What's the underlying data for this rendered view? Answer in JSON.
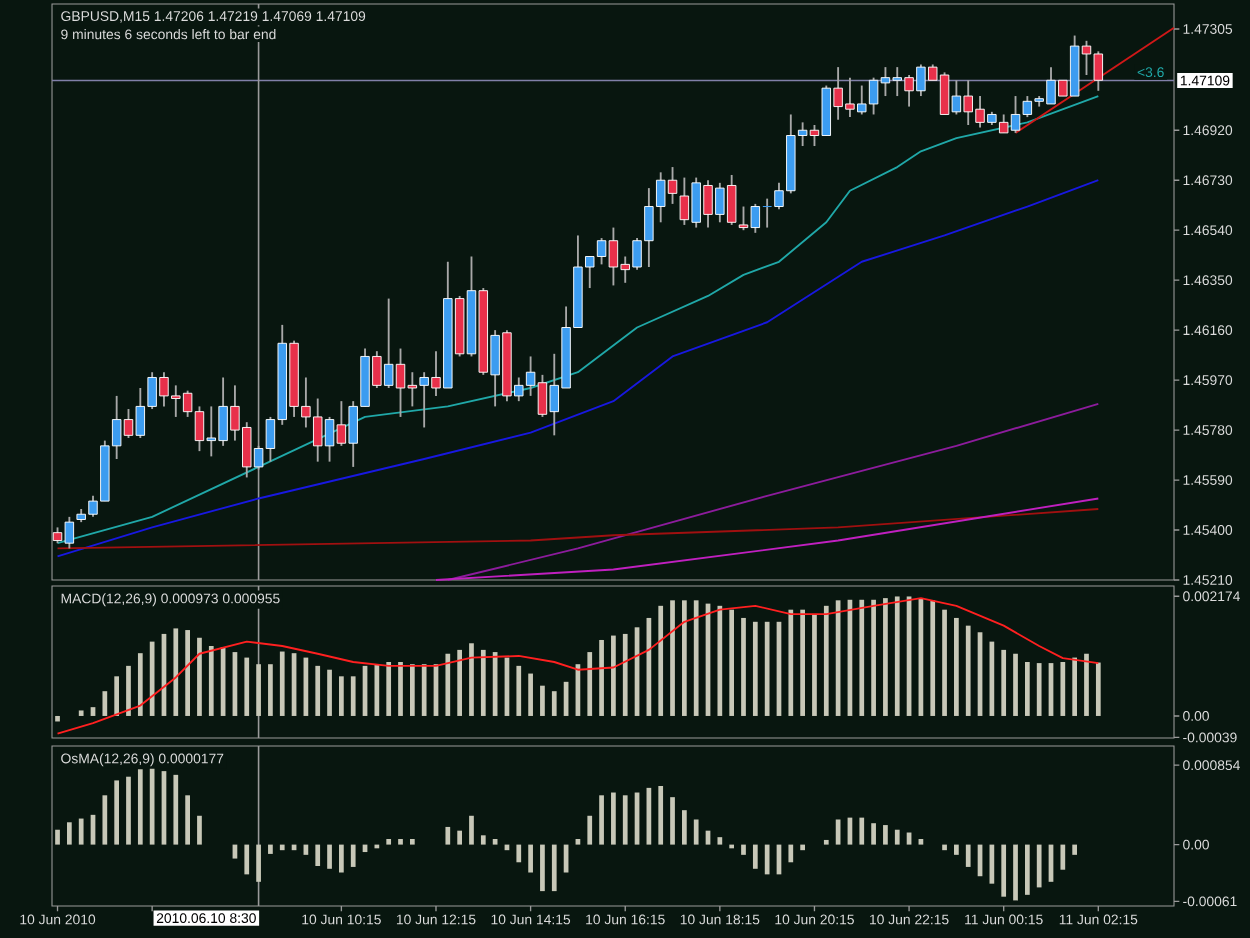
{
  "chart_data": [
    {
      "type": "candlestick",
      "title": "GBPUSD,M15 1.47206 1.47219 1.47069 1.47109",
      "subtitle": "9 minutes 6 seconds left to bar end",
      "x": [
        "2010-06-10T04:15",
        "2010-06-10T04:30",
        "2010-06-10T04:45",
        "2010-06-10T05:00",
        "2010-06-10T05:15",
        "2010-06-10T05:30",
        "2010-06-10T05:45",
        "2010-06-10T06:00",
        "2010-06-10T06:15",
        "2010-06-10T06:30",
        "2010-06-10T06:45",
        "2010-06-10T07:00",
        "2010-06-10T07:15",
        "2010-06-10T07:30",
        "2010-06-10T07:45",
        "2010-06-10T08:00",
        "2010-06-10T08:15",
        "2010-06-10T08:30",
        "2010-06-10T08:45",
        "2010-06-10T09:00",
        "2010-06-10T09:15",
        "2010-06-10T09:30",
        "2010-06-10T09:45",
        "2010-06-10T10:00",
        "2010-06-10T10:15",
        "2010-06-10T10:30",
        "2010-06-10T10:45",
        "2010-06-10T11:00",
        "2010-06-10T11:15",
        "2010-06-10T11:30",
        "2010-06-10T11:45",
        "2010-06-10T12:00",
        "2010-06-10T12:15",
        "2010-06-10T12:30",
        "2010-06-10T12:45",
        "2010-06-10T13:00",
        "2010-06-10T13:15",
        "2010-06-10T13:30",
        "2010-06-10T13:45",
        "2010-06-10T14:00",
        "2010-06-10T14:15",
        "2010-06-10T14:30",
        "2010-06-10T14:45",
        "2010-06-10T15:00",
        "2010-06-10T15:15",
        "2010-06-10T15:30",
        "2010-06-10T15:45",
        "2010-06-10T16:00",
        "2010-06-10T16:15",
        "2010-06-10T16:30",
        "2010-06-10T16:45",
        "2010-06-10T17:00",
        "2010-06-10T17:15",
        "2010-06-10T17:30",
        "2010-06-10T17:45",
        "2010-06-10T18:00",
        "2010-06-10T18:15",
        "2010-06-10T18:30",
        "2010-06-10T18:45",
        "2010-06-10T19:00",
        "2010-06-10T19:15",
        "2010-06-10T19:30",
        "2010-06-10T19:45",
        "2010-06-10T20:00",
        "2010-06-10T20:15",
        "2010-06-10T20:30",
        "2010-06-10T20:45",
        "2010-06-10T21:00",
        "2010-06-10T21:15",
        "2010-06-10T21:30",
        "2010-06-10T21:45",
        "2010-06-10T22:00",
        "2010-06-10T22:15",
        "2010-06-10T22:30",
        "2010-06-10T22:45",
        "2010-06-10T23:00",
        "2010-06-10T23:15",
        "2010-06-10T23:30",
        "2010-06-10T23:45",
        "2010-06-11T00:00",
        "2010-06-11T00:15",
        "2010-06-11T00:30",
        "2010-06-11T00:45",
        "2010-06-11T01:00",
        "2010-06-11T01:15",
        "2010-06-11T01:30",
        "2010-06-11T01:45",
        "2010-06-11T02:00",
        "2010-06-11T02:15"
      ],
      "ohlc": [
        [
          1.4539,
          1.4541,
          1.4535,
          1.4536
        ],
        [
          1.4535,
          1.4545,
          1.4533,
          1.4543
        ],
        [
          1.4544,
          1.4548,
          1.4543,
          1.4546
        ],
        [
          1.4546,
          1.4553,
          1.4545,
          1.4551
        ],
        [
          1.4551,
          1.4574,
          1.4551,
          1.4572
        ],
        [
          1.4572,
          1.4591,
          1.4567,
          1.4582
        ],
        [
          1.4582,
          1.4586,
          1.4575,
          1.4576
        ],
        [
          1.4576,
          1.4594,
          1.4575,
          1.4587
        ],
        [
          1.4587,
          1.46,
          1.4586,
          1.4598
        ],
        [
          1.4598,
          1.46,
          1.4587,
          1.4591
        ],
        [
          1.4591,
          1.4595,
          1.4583,
          1.459
        ],
        [
          1.4592,
          1.4593,
          1.4583,
          1.4585
        ],
        [
          1.4585,
          1.4587,
          1.457,
          1.4574
        ],
        [
          1.4574,
          1.4587,
          1.4568,
          1.4575
        ],
        [
          1.4574,
          1.4598,
          1.4572,
          1.4587
        ],
        [
          1.4587,
          1.4595,
          1.4574,
          1.4578
        ],
        [
          1.4579,
          1.4581,
          1.456,
          1.4564
        ],
        [
          1.4564,
          1.4572,
          1.4563,
          1.4571
        ],
        [
          1.4571,
          1.4583,
          1.4566,
          1.4582
        ],
        [
          1.4582,
          1.4618,
          1.458,
          1.4611
        ],
        [
          1.4611,
          1.4612,
          1.4583,
          1.4587
        ],
        [
          1.4587,
          1.4598,
          1.4579,
          1.4583
        ],
        [
          1.4583,
          1.459,
          1.4566,
          1.4572
        ],
        [
          1.4572,
          1.4583,
          1.4566,
          1.4582
        ],
        [
          1.458,
          1.4589,
          1.4572,
          1.4573
        ],
        [
          1.4573,
          1.4589,
          1.4564,
          1.4587
        ],
        [
          1.4587,
          1.4609,
          1.4587,
          1.4606
        ],
        [
          1.4606,
          1.4608,
          1.4594,
          1.4595
        ],
        [
          1.4595,
          1.4628,
          1.4594,
          1.4603
        ],
        [
          1.4603,
          1.4609,
          1.4583,
          1.4594
        ],
        [
          1.4595,
          1.46,
          1.4587,
          1.4594
        ],
        [
          1.4595,
          1.46,
          1.4579,
          1.4598
        ],
        [
          1.4598,
          1.4608,
          1.4591,
          1.4594
        ],
        [
          1.4594,
          1.4642,
          1.4594,
          1.4628
        ],
        [
          1.4628,
          1.4629,
          1.4606,
          1.4607
        ],
        [
          1.4607,
          1.4644,
          1.4606,
          1.4631
        ],
        [
          1.4631,
          1.4632,
          1.4599,
          1.46
        ],
        [
          1.4599,
          1.4616,
          1.4587,
          1.4614
        ],
        [
          1.4615,
          1.4616,
          1.4589,
          1.4591
        ],
        [
          1.4591,
          1.4598,
          1.4589,
          1.4595
        ],
        [
          1.4595,
          1.4606,
          1.4591,
          1.46
        ],
        [
          1.4596,
          1.4599,
          1.4583,
          1.4584
        ],
        [
          1.4585,
          1.4607,
          1.4576,
          1.4595
        ],
        [
          1.4594,
          1.4625,
          1.4594,
          1.4617
        ],
        [
          1.4617,
          1.4652,
          1.4617,
          1.464
        ],
        [
          1.464,
          1.4644,
          1.4632,
          1.4644
        ],
        [
          1.4644,
          1.4651,
          1.4641,
          1.465
        ],
        [
          1.465,
          1.4655,
          1.4633,
          1.464
        ],
        [
          1.4641,
          1.4644,
          1.4634,
          1.4639
        ],
        [
          1.464,
          1.4651,
          1.4639,
          1.465
        ],
        [
          1.465,
          1.467,
          1.464,
          1.4663
        ],
        [
          1.4663,
          1.4676,
          1.4657,
          1.4673
        ],
        [
          1.4673,
          1.4678,
          1.4664,
          1.4668
        ],
        [
          1.4667,
          1.4674,
          1.4656,
          1.4658
        ],
        [
          1.4657,
          1.4674,
          1.4655,
          1.4672
        ],
        [
          1.4671,
          1.4673,
          1.4655,
          1.466
        ],
        [
          1.466,
          1.4672,
          1.4657,
          1.467
        ],
        [
          1.4671,
          1.4675,
          1.4656,
          1.4657
        ],
        [
          1.4656,
          1.4663,
          1.4654,
          1.4655
        ],
        [
          1.4655,
          1.4664,
          1.4653,
          1.4663
        ],
        [
          1.4663,
          1.4666,
          1.4655,
          1.4663
        ],
        [
          1.4663,
          1.4672,
          1.4662,
          1.4669
        ],
        [
          1.4669,
          1.4698,
          1.4668,
          1.469
        ],
        [
          1.469,
          1.4695,
          1.4686,
          1.4692
        ],
        [
          1.4692,
          1.4694,
          1.4686,
          1.469
        ],
        [
          1.469,
          1.4709,
          1.469,
          1.4708
        ],
        [
          1.4708,
          1.4716,
          1.4696,
          1.4701
        ],
        [
          1.4702,
          1.4712,
          1.4697,
          1.47
        ],
        [
          1.4699,
          1.4709,
          1.4698,
          1.4702
        ],
        [
          1.4702,
          1.4712,
          1.4698,
          1.4711
        ],
        [
          1.471,
          1.4716,
          1.4705,
          1.4712
        ],
        [
          1.4711,
          1.4716,
          1.4705,
          1.4712
        ],
        [
          1.4712,
          1.4713,
          1.4701,
          1.4707
        ],
        [
          1.4707,
          1.4717,
          1.4705,
          1.4716
        ],
        [
          1.4716,
          1.4717,
          1.4711,
          1.4711
        ],
        [
          1.4713,
          1.4714,
          1.4698,
          1.4698
        ],
        [
          1.4699,
          1.4711,
          1.4698,
          1.4705
        ],
        [
          1.4705,
          1.4711,
          1.4694,
          1.4699
        ],
        [
          1.47,
          1.4705,
          1.4693,
          1.4695
        ],
        [
          1.4695,
          1.4699,
          1.4694,
          1.4698
        ],
        [
          1.4695,
          1.4698,
          1.4691,
          1.4691
        ],
        [
          1.4692,
          1.4705,
          1.4691,
          1.4698
        ],
        [
          1.4698,
          1.4705,
          1.4697,
          1.4703
        ],
        [
          1.4703,
          1.4705,
          1.4701,
          1.4704
        ],
        [
          1.4702,
          1.4716,
          1.4702,
          1.4711
        ],
        [
          1.4711,
          1.4711,
          1.4705,
          1.4705
        ],
        [
          1.4705,
          1.4728,
          1.4705,
          1.4724
        ],
        [
          1.4724,
          1.4726,
          1.4713,
          1.4721
        ],
        [
          1.4721,
          1.4722,
          1.4707,
          1.4711
        ]
      ],
      "colors": [
        "#e8304a",
        "#3c9cf0",
        "#3c9cf0",
        "#3c9cf0",
        "#3c9cf0",
        "#3c9cf0",
        "#e8304a",
        "#3c9cf0",
        "#3c9cf0",
        "#e8304a",
        "#e8304a",
        "#e8304a",
        "#e8304a",
        "#3c9cf0",
        "#3c9cf0",
        "#e8304a",
        "#e8304a",
        "#3c9cf0",
        "#3c9cf0",
        "#3c9cf0",
        "#e8304a",
        "#e8304a",
        "#e8304a",
        "#3c9cf0",
        "#e8304a",
        "#3c9cf0",
        "#3c9cf0",
        "#e8304a",
        "#3c9cf0",
        "#e8304a",
        "#e8304a",
        "#3c9cf0",
        "#e8304a",
        "#3c9cf0",
        "#e8304a",
        "#3c9cf0",
        "#e8304a",
        "#3c9cf0",
        "#e8304a",
        "#3c9cf0",
        "#3c9cf0",
        "#e8304a",
        "#3c9cf0",
        "#3c9cf0",
        "#3c9cf0",
        "#3c9cf0",
        "#3c9cf0",
        "#e8304a",
        "#e8304a",
        "#3c9cf0",
        "#3c9cf0",
        "#3c9cf0",
        "#e8304a",
        "#e8304a",
        "#3c9cf0",
        "#e8304a",
        "#3c9cf0",
        "#e8304a",
        "#e8304a",
        "#3c9cf0",
        "#3c9cf0",
        "#3c9cf0",
        "#3c9cf0",
        "#3c9cf0",
        "#e8304a",
        "#3c9cf0",
        "#e8304a",
        "#e8304a",
        "#3c9cf0",
        "#3c9cf0",
        "#3c9cf0",
        "#3c9cf0",
        "#e8304a",
        "#3c9cf0",
        "#e8304a",
        "#e8304a",
        "#3c9cf0",
        "#e8304a",
        "#e8304a",
        "#3c9cf0",
        "#e8304a",
        "#3c9cf0",
        "#3c9cf0",
        "#3c9cf0",
        "#3c9cf0",
        "#e8304a",
        "#3c9cf0",
        "#e8304a",
        "#e8304a"
      ],
      "series": [
        {
          "type": "line",
          "color": "#20a8a8",
          "x": [
            "2010-06-10T04:15",
            "2010-06-10T06:15",
            "2010-06-10T08:30",
            "2010-06-10T10:45",
            "2010-06-10T12:30",
            "2010-06-10T14:15",
            "2010-06-10T15:15",
            "2010-06-10T16:30",
            "2010-06-10T18:00",
            "2010-06-10T18:45",
            "2010-06-10T19:30",
            "2010-06-10T20:30",
            "2010-06-10T21:00",
            "2010-06-10T22:00",
            "2010-06-10T22:30",
            "2010-06-10T23:15",
            "2010-06-11T00:45",
            "2010-06-11T02:15"
          ],
          "values": [
            1.4535,
            1.4545,
            1.4564,
            1.4583,
            1.4587,
            1.4594,
            1.46,
            1.4617,
            1.4629,
            1.4637,
            1.4642,
            1.4657,
            1.4669,
            1.4678,
            1.4684,
            1.4689,
            1.4695,
            1.4705
          ]
        },
        {
          "type": "line",
          "color": "#1818e0",
          "x": [
            "2010-06-10T04:15",
            "2010-06-10T06:15",
            "2010-06-10T08:30",
            "2010-06-10T12:00",
            "2010-06-10T14:15",
            "2010-06-10T16:00",
            "2010-06-10T17:15",
            "2010-06-10T19:15",
            "2010-06-10T21:15",
            "2010-06-10T23:00",
            "2010-06-11T00:45",
            "2010-06-11T02:15"
          ],
          "values": [
            1.453,
            1.4541,
            1.4552,
            1.4567,
            1.4577,
            1.4589,
            1.4606,
            1.4619,
            1.4642,
            1.4652,
            1.4663,
            1.4673
          ]
        },
        {
          "type": "line",
          "color": "#8c1c9c",
          "x": [
            "2010-06-10T12:30",
            "2010-06-10T15:15",
            "2010-06-10T19:15",
            "2010-06-10T23:15",
            "2010-06-11T02:15"
          ],
          "values": [
            1.4521,
            1.4533,
            1.4553,
            1.4572,
            1.4588
          ]
        },
        {
          "type": "line",
          "color": "#a01010",
          "x": [
            "2010-06-10T04:15",
            "2010-06-10T14:15",
            "2010-06-10T16:00",
            "2010-06-10T20:45",
            "2010-06-11T02:15"
          ],
          "values": [
            1.4533,
            1.4536,
            1.4538,
            1.4541,
            1.4548
          ]
        },
        {
          "type": "line",
          "color": "#c020c0",
          "x": [
            "2010-06-10T12:15",
            "2010-06-10T16:00",
            "2010-06-10T20:45",
            "2010-06-11T02:15"
          ],
          "values": [
            1.4521,
            1.4525,
            1.4536,
            1.4552
          ]
        },
        {
          "type": "line",
          "color": "#d01818",
          "x": [
            "2010-06-11T00:30",
            "2010-06-11T03:51"
          ],
          "values": [
            1.4691,
            1.4731
          ]
        }
      ],
      "ref_lines": [
        {
          "axis": "y",
          "value": 1.47109,
          "label": "1.47109",
          "color": "#8080a8"
        },
        {
          "axis": "x",
          "value": "2010-06-10T08:30",
          "color": "#9a9a9a"
        }
      ],
      "annotations": [
        {
          "text": "<3.6",
          "x": "2010-06-11T03:00",
          "y": 1.4711
        }
      ],
      "xlim": [
        "2010-06-10T04:08",
        "2010-06-11T03:51"
      ],
      "ylim": [
        1.4521,
        1.474
      ],
      "yticks": [
        1.47305,
        {
          "value": 1.4692,
          "label": "1.46920"
        },
        {
          "value": 1.4673,
          "label": "1.46730"
        },
        {
          "value": 1.4654,
          "label": "1.46540"
        },
        {
          "value": 1.4635,
          "label": "1.46350"
        },
        {
          "value": 1.4616,
          "label": "1.46160"
        },
        {
          "value": 1.4597,
          "label": "1.45970"
        },
        {
          "value": 1.4578,
          "label": "1.45780"
        },
        {
          "value": 1.4559,
          "label": "1.45590"
        },
        {
          "value": 1.454,
          "label": "1.45400"
        },
        {
          "value": 1.4521,
          "label": "1.45210"
        }
      ],
      "tick_labels": "y"
    },
    {
      "type": "bar",
      "title": "MACD(12,26,9) 0.000973 0.000955",
      "x": [
        "2010-06-10T04:15",
        "2010-06-10T04:30",
        "2010-06-10T04:45",
        "2010-06-10T05:00",
        "2010-06-10T05:15",
        "2010-06-10T05:30",
        "2010-06-10T05:45",
        "2010-06-10T06:00",
        "2010-06-10T06:15",
        "2010-06-10T06:30",
        "2010-06-10T06:45",
        "2010-06-10T07:00",
        "2010-06-10T07:15",
        "2010-06-10T07:30",
        "2010-06-10T07:45",
        "2010-06-10T08:00",
        "2010-06-10T08:15",
        "2010-06-10T08:30",
        "2010-06-10T08:45",
        "2010-06-10T09:00",
        "2010-06-10T09:15",
        "2010-06-10T09:30",
        "2010-06-10T09:45",
        "2010-06-10T10:00",
        "2010-06-10T10:15",
        "2010-06-10T10:30",
        "2010-06-10T10:45",
        "2010-06-10T11:00",
        "2010-06-10T11:15",
        "2010-06-10T11:30",
        "2010-06-10T11:45",
        "2010-06-10T12:00",
        "2010-06-10T12:15",
        "2010-06-10T12:30",
        "2010-06-10T12:45",
        "2010-06-10T13:00",
        "2010-06-10T13:15",
        "2010-06-10T13:30",
        "2010-06-10T13:45",
        "2010-06-10T14:00",
        "2010-06-10T14:15",
        "2010-06-10T14:30",
        "2010-06-10T14:45",
        "2010-06-10T15:00",
        "2010-06-10T15:15",
        "2010-06-10T15:30",
        "2010-06-10T15:45",
        "2010-06-10T16:00",
        "2010-06-10T16:15",
        "2010-06-10T16:30",
        "2010-06-10T16:45",
        "2010-06-10T17:00",
        "2010-06-10T17:15",
        "2010-06-10T17:30",
        "2010-06-10T17:45",
        "2010-06-10T18:00",
        "2010-06-10T18:15",
        "2010-06-10T18:30",
        "2010-06-10T18:45",
        "2010-06-10T19:00",
        "2010-06-10T19:15",
        "2010-06-10T19:30",
        "2010-06-10T19:45",
        "2010-06-10T20:00",
        "2010-06-10T20:15",
        "2010-06-10T20:30",
        "2010-06-10T20:45",
        "2010-06-10T21:00",
        "2010-06-10T21:15",
        "2010-06-10T21:30",
        "2010-06-10T21:45",
        "2010-06-10T22:00",
        "2010-06-10T22:15",
        "2010-06-10T22:30",
        "2010-06-10T22:45",
        "2010-06-10T23:00",
        "2010-06-10T23:15",
        "2010-06-10T23:30",
        "2010-06-10T23:45",
        "2010-06-11T00:00",
        "2010-06-11T00:15",
        "2010-06-11T00:30",
        "2010-06-11T00:45",
        "2010-06-11T01:00",
        "2010-06-11T01:15",
        "2010-06-11T01:30",
        "2010-06-11T01:45",
        "2010-06-11T02:00",
        "2010-06-11T02:15"
      ],
      "series": [
        {
          "type": "bar",
          "color": "#c8c8b8",
          "values": [
            -0.0001,
            0,
            0.0001,
            0.00016,
            0.00045,
            0.00072,
            0.00091,
            0.00114,
            0.00135,
            0.00149,
            0.00159,
            0.00156,
            0.00142,
            0.00127,
            0.00125,
            0.00116,
            0.00106,
            0.00094,
            0.00094,
            0.00117,
            0.00114,
            0.00106,
            0.00091,
            0.00084,
            0.00072,
            0.00072,
            0.00091,
            0.00094,
            0.00098,
            0.00098,
            0.00094,
            0.00094,
            0.00094,
            0.00113,
            0.0012,
            0.00132,
            0.0012,
            0.00116,
            0.00106,
            0.00091,
            0.00077,
            0.00055,
            0.00045,
            0.00062,
            0.00094,
            0.00116,
            0.00138,
            0.00146,
            0.00149,
            0.00161,
            0.00178,
            0.002,
            0.0021,
            0.0021,
            0.0021,
            0.00204,
            0.002,
            0.00193,
            0.00178,
            0.00171,
            0.00171,
            0.00171,
            0.00193,
            0.00193,
            0.00185,
            0.002,
            0.0021,
            0.00211,
            0.00211,
            0.00211,
            0.00214,
            0.00217,
            0.00217,
            0.00214,
            0.0021,
            0.00193,
            0.00178,
            0.00164,
            0.00152,
            0.00135,
            0.0012,
            0.00113,
            0.00098,
            0.00096,
            0.00096,
            0.00098,
            0.00106,
            0.00113,
            0.00097
          ]
        },
        {
          "type": "line",
          "color": "#ff2020",
          "x": [
            "2010-06-10T04:15",
            "2010-06-10T05:00",
            "2010-06-10T06:00",
            "2010-06-10T06:45",
            "2010-06-10T07:15",
            "2010-06-10T08:15",
            "2010-06-10T09:00",
            "2010-06-10T09:45",
            "2010-06-10T10:30",
            "2010-06-10T11:15",
            "2010-06-10T12:15",
            "2010-06-10T13:00",
            "2010-06-10T14:00",
            "2010-06-10T14:45",
            "2010-06-10T15:15",
            "2010-06-10T16:00",
            "2010-06-10T16:45",
            "2010-06-10T17:30",
            "2010-06-10T18:15",
            "2010-06-10T19:00",
            "2010-06-10T19:45",
            "2010-06-10T20:30",
            "2010-06-10T21:30",
            "2010-06-10T22:30",
            "2010-06-10T23:15",
            "2010-06-11T00:15",
            "2010-06-11T01:00",
            "2010-06-11T01:30",
            "2010-06-11T02:15"
          ],
          "values": [
            -0.00032,
            -0.00013,
            0.00019,
            0.0007,
            0.00113,
            0.00135,
            0.00127,
            0.00113,
            0.00098,
            0.00091,
            0.00091,
            0.00106,
            0.00109,
            0.00098,
            0.00084,
            0.00088,
            0.0012,
            0.00171,
            0.00193,
            0.002,
            0.00185,
            0.00185,
            0.002,
            0.00214,
            0.002,
            0.00164,
            0.00127,
            0.00105,
            0.00096
          ]
        }
      ],
      "ref_lines": [
        {
          "axis": "x",
          "value": "2010-06-10T08:30",
          "color": "#9a9a9a"
        }
      ],
      "xlim": [
        "2010-06-10T04:08",
        "2010-06-11T03:51"
      ],
      "ylim": [
        -0.0004,
        0.00236
      ],
      "yticks": [
        0.002174,
        {
          "value": 0,
          "label": "0.00"
        },
        -0.00039
      ],
      "tick_labels": "y"
    },
    {
      "type": "bar",
      "title": "OsMA(12,26,9) 0.0000177",
      "color": "#c8c8b8",
      "x": [
        "2010-06-10T04:15",
        "2010-06-10T04:30",
        "2010-06-10T04:45",
        "2010-06-10T05:00",
        "2010-06-10T05:15",
        "2010-06-10T05:30",
        "2010-06-10T05:45",
        "2010-06-10T06:00",
        "2010-06-10T06:15",
        "2010-06-10T06:30",
        "2010-06-10T06:45",
        "2010-06-10T07:00",
        "2010-06-10T07:15",
        "2010-06-10T07:30",
        "2010-06-10T07:45",
        "2010-06-10T08:00",
        "2010-06-10T08:15",
        "2010-06-10T08:30",
        "2010-06-10T08:45",
        "2010-06-10T09:00",
        "2010-06-10T09:15",
        "2010-06-10T09:30",
        "2010-06-10T09:45",
        "2010-06-10T10:00",
        "2010-06-10T10:15",
        "2010-06-10T10:30",
        "2010-06-10T10:45",
        "2010-06-10T11:00",
        "2010-06-10T11:15",
        "2010-06-10T11:30",
        "2010-06-10T11:45",
        "2010-06-10T12:00",
        "2010-06-10T12:15",
        "2010-06-10T12:30",
        "2010-06-10T12:45",
        "2010-06-10T13:00",
        "2010-06-10T13:15",
        "2010-06-10T13:30",
        "2010-06-10T13:45",
        "2010-06-10T14:00",
        "2010-06-10T14:15",
        "2010-06-10T14:30",
        "2010-06-10T14:45",
        "2010-06-10T15:00",
        "2010-06-10T15:15",
        "2010-06-10T15:30",
        "2010-06-10T15:45",
        "2010-06-10T16:00",
        "2010-06-10T16:15",
        "2010-06-10T16:30",
        "2010-06-10T16:45",
        "2010-06-10T17:00",
        "2010-06-10T17:15",
        "2010-06-10T17:30",
        "2010-06-10T17:45",
        "2010-06-10T18:00",
        "2010-06-10T18:15",
        "2010-06-10T18:30",
        "2010-06-10T18:45",
        "2010-06-10T19:00",
        "2010-06-10T19:15",
        "2010-06-10T19:30",
        "2010-06-10T19:45",
        "2010-06-10T20:00",
        "2010-06-10T20:15",
        "2010-06-10T20:30",
        "2010-06-10T20:45",
        "2010-06-10T21:00",
        "2010-06-10T21:15",
        "2010-06-10T21:30",
        "2010-06-10T21:45",
        "2010-06-10T22:00",
        "2010-06-10T22:15",
        "2010-06-10T22:30",
        "2010-06-10T22:45",
        "2010-06-10T23:00",
        "2010-06-10T23:15",
        "2010-06-10T23:30",
        "2010-06-10T23:45",
        "2010-06-11T00:00",
        "2010-06-11T00:15",
        "2010-06-11T00:30",
        "2010-06-11T00:45",
        "2010-06-11T01:00",
        "2010-06-11T01:15",
        "2010-06-11T01:30",
        "2010-06-11T01:45",
        "2010-06-11T02:00",
        "2010-06-11T02:15"
      ],
      "values": [
        0.00016,
        0.00024,
        0.00028,
        0.00032,
        0.00053,
        0.00069,
        0.00073,
        0.00081,
        0.00085,
        0.00079,
        0.00075,
        0.00053,
        0.00031,
        0,
        0,
        -0.00015,
        -0.00032,
        -0.0004,
        -0.0001,
        -6e-05,
        -6e-05,
        -0.00011,
        -0.00023,
        -0.00026,
        -0.0003,
        -0.00024,
        -8e-05,
        -4e-05,
        6e-05,
        6e-05,
        6e-05,
        0,
        0,
        0.00019,
        0.00015,
        0.00031,
        0.0001,
        6e-05,
        -6e-05,
        -0.00019,
        -0.0003,
        -0.0005,
        -0.0005,
        -0.0003,
        6e-05,
        0.00031,
        0.00053,
        0.00056,
        0.00053,
        0.00056,
        0.00061,
        0.00063,
        0.00051,
        0.00037,
        0.00027,
        0.00015,
        8e-05,
        -4e-05,
        -0.00011,
        -0.00026,
        -0.00032,
        -0.00032,
        -0.00019,
        -6e-05,
        0,
        5e-05,
        0.00027,
        0.00029,
        0.00029,
        0.00023,
        0.00021,
        0.00016,
        0.00013,
        6e-05,
        0,
        -6e-05,
        -0.00011,
        -0.00024,
        -0.00034,
        -0.00042,
        -0.00056,
        -0.0006,
        -0.00054,
        -0.00046,
        -0.0004,
        -0.00027,
        -0.00011,
        0,
        0
      ],
      "ref_lines": [
        {
          "axis": "x",
          "value": "2010-06-10T08:30",
          "label": "2010.06.10 8:30",
          "color": "#9a9a9a"
        }
      ],
      "xlim": [
        "2010-06-10T04:08",
        "2010-06-11T03:51"
      ],
      "ylim": [
        -0.00066,
        0.00106
      ],
      "xticks": [
        {
          "value": "2010-06-10T04:15",
          "label": "10 Jun 2010"
        },
        {
          "value": "2010-06-10T06:15",
          "label": null
        },
        {
          "value": "2010-06-10T10:15",
          "label": "10 Jun 10:15"
        },
        {
          "value": "2010-06-10T12:15",
          "label": "10 Jun 12:15"
        },
        {
          "value": "2010-06-10T14:15",
          "label": "10 Jun 14:15"
        },
        {
          "value": "2010-06-10T16:15",
          "label": "10 Jun 16:15"
        },
        {
          "value": "2010-06-10T18:15",
          "label": "10 Jun 18:15"
        },
        {
          "value": "2010-06-10T20:15",
          "label": "10 Jun 20:15"
        },
        {
          "value": "2010-06-10T22:15",
          "label": "10 Jun 22:15"
        },
        {
          "value": "2010-06-11T00:15",
          "label": "11 Jun 00:15"
        },
        {
          "value": "2010-06-11T02:15",
          "label": "11 Jun 02:15"
        }
      ],
      "yticks": [
        0.000854,
        {
          "value": 0,
          "label": "0.00"
        },
        -0.00061
      ]
    }
  ]
}
